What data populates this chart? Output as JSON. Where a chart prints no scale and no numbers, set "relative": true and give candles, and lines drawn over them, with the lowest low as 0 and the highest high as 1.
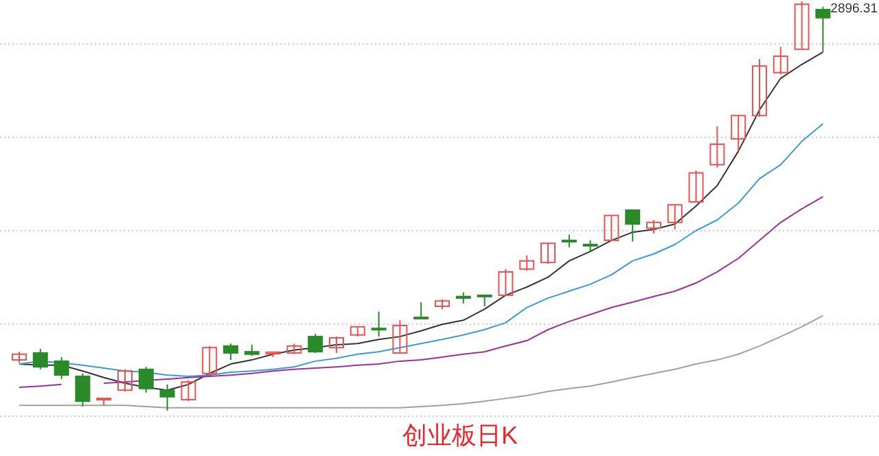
{
  "chart_data": {
    "type": "candlestick",
    "title": "创业板日K",
    "relative": true,
    "grid": "y",
    "categories": [
      null,
      null,
      null,
      null,
      null,
      null,
      null,
      null,
      null,
      null,
      null,
      null,
      null,
      null,
      null,
      null,
      null,
      null,
      null,
      null,
      null,
      null,
      null,
      null,
      null,
      null,
      null,
      null,
      null,
      null,
      null,
      null,
      null,
      null,
      null,
      null,
      null,
      null,
      null
    ],
    "ohlc": [
      [
        0.124,
        0.144,
        0.117,
        0.138
      ],
      [
        0.141,
        0.151,
        0.101,
        0.107
      ],
      [
        0.121,
        0.131,
        0.077,
        0.087
      ],
      [
        0.084,
        0.091,
        0.01,
        0.023
      ],
      [
        0.027,
        0.03,
        0.013,
        0.03
      ],
      [
        0.05,
        0.101,
        0.047,
        0.097
      ],
      [
        0.101,
        0.107,
        0.044,
        0.054
      ],
      [
        0.05,
        0.064,
        0,
        0.034
      ],
      [
        0.027,
        0.074,
        0.023,
        0.07
      ],
      [
        0.091,
        0.158,
        0.087,
        0.154
      ],
      [
        0.158,
        0.164,
        0.124,
        0.141
      ],
      [
        0.144,
        0.161,
        0.134,
        0.138
      ],
      [
        0.139,
        0.144,
        0.131,
        0.143
      ],
      [
        0.141,
        0.164,
        0.138,
        0.158
      ],
      [
        0.181,
        0.188,
        0.141,
        0.144
      ],
      [
        0.154,
        0.181,
        0.141,
        0.178
      ],
      [
        0.185,
        0.205,
        0.181,
        0.205
      ],
      [
        0.201,
        0.242,
        0.181,
        0.198
      ],
      [
        0.141,
        0.221,
        0.141,
        0.208
      ],
      [
        0.228,
        0.265,
        0.225,
        0.225
      ],
      [
        0.255,
        0.272,
        0.248,
        0.268
      ],
      [
        0.279,
        0.289,
        0.262,
        0.275
      ],
      [
        0.282,
        0.282,
        0.255,
        0.279
      ],
      [
        0.282,
        0.346,
        0.282,
        0.339
      ],
      [
        0.346,
        0.379,
        0.342,
        0.366
      ],
      [
        0.362,
        0.409,
        0.359,
        0.409
      ],
      [
        0.416,
        0.43,
        0.399,
        0.413
      ],
      [
        0.406,
        0.416,
        0.389,
        0.403
      ],
      [
        0.416,
        0.477,
        0.416,
        0.477
      ],
      [
        0.49,
        0.49,
        0.413,
        0.456
      ],
      [
        0.446,
        0.466,
        0.433,
        0.46
      ],
      [
        0.46,
        0.503,
        0.443,
        0.503
      ],
      [
        0.51,
        0.587,
        0.51,
        0.581
      ],
      [
        0.601,
        0.695,
        0.594,
        0.651
      ],
      [
        0.664,
        0.721,
        0.634,
        0.721
      ],
      [
        0.721,
        0.859,
        0.718,
        0.842
      ],
      [
        0.826,
        0.889,
        0.822,
        0.866
      ],
      [
        0.883,
        1,
        0.883,
        0.993
      ],
      [
        0.98,
        0.987,
        0.876,
        0.96
      ]
    ],
    "colors": [
      "#f05050",
      "#2a8a2a",
      "#2a8a2a",
      "#2a8a2a",
      "#f05050",
      "#f05050",
      "#2a8a2a",
      "#2a8a2a",
      "#f05050",
      "#f05050",
      "#2a8a2a",
      "#2a8a2a",
      "#f05050",
      "#f05050",
      "#2a8a2a",
      "#f05050",
      "#f05050",
      "#2a8a2a",
      "#f05050",
      "#2a8a2a",
      "#f05050",
      "#2a8a2a",
      "#2a8a2a",
      "#f05050",
      "#f05050",
      "#f05050",
      "#2a8a2a",
      "#2a8a2a",
      "#f05050",
      "#2a8a2a",
      "#f05050",
      "#f05050",
      "#f05050",
      "#f05050",
      "#f05050",
      "#f05050",
      "#f05050",
      "#f05050",
      "#2a8a2a"
    ],
    "series": [
      {
        "type": "line",
        "color": "#333333",
        "values": [
          0.114,
          0.111,
          0.111,
          0.097,
          0.081,
          0.067,
          0.057,
          0.05,
          0.064,
          0.091,
          0.114,
          0.124,
          0.138,
          0.148,
          0.154,
          0.161,
          0.164,
          0.174,
          0.181,
          0.195,
          0.211,
          0.221,
          0.248,
          0.282,
          0.302,
          0.326,
          0.366,
          0.389,
          0.416,
          0.436,
          0.443,
          0.456,
          0.5,
          0.55,
          0.634,
          0.735,
          0.812,
          0.846,
          0.876
        ]
      },
      {
        "type": "line",
        "color": "#3a9ad9",
        "values": [
          0.114,
          0.121,
          0.117,
          0.111,
          0.104,
          0.097,
          0.094,
          0.087,
          0.084,
          0.087,
          0.094,
          0.097,
          0.101,
          0.107,
          0.121,
          0.128,
          0.138,
          0.144,
          0.154,
          0.164,
          0.174,
          0.185,
          0.198,
          0.215,
          0.252,
          0.275,
          0.292,
          0.309,
          0.332,
          0.366,
          0.383,
          0.406,
          0.44,
          0.466,
          0.507,
          0.567,
          0.601,
          0.658,
          0.701
        ]
      },
      {
        "type": "line",
        "color": "#9b2f9b",
        "values": [
          0.057,
          0.06,
          0.064,
          null,
          0.067,
          0.07,
          0.074,
          0.077,
          0.081,
          0.084,
          0.087,
          0.091,
          0.097,
          0.101,
          0.104,
          0.107,
          0.111,
          0.114,
          0.121,
          0.124,
          0.131,
          0.138,
          0.144,
          0.158,
          0.171,
          0.198,
          0.218,
          0.235,
          0.252,
          0.265,
          0.279,
          0.292,
          0.312,
          0.339,
          0.372,
          0.416,
          0.46,
          0.493,
          0.523
        ]
      },
      {
        "type": "line",
        "color": "#a0a0a0",
        "values": [
          0.013,
          0.013,
          0.013,
          0.013,
          0.013,
          0.013,
          0.01,
          0.007,
          0.007,
          0.007,
          0.007,
          0.007,
          0.007,
          0.007,
          0.007,
          0.007,
          0.007,
          0.007,
          0.007,
          0.01,
          0.013,
          0.017,
          0.023,
          0.03,
          0.037,
          0.047,
          0.054,
          0.06,
          0.07,
          0.081,
          0.091,
          0.101,
          0.114,
          0.124,
          0.138,
          0.158,
          0.181,
          0.205,
          0.232
        ]
      }
    ],
    "annotations": [
      "2896.31"
    ]
  }
}
